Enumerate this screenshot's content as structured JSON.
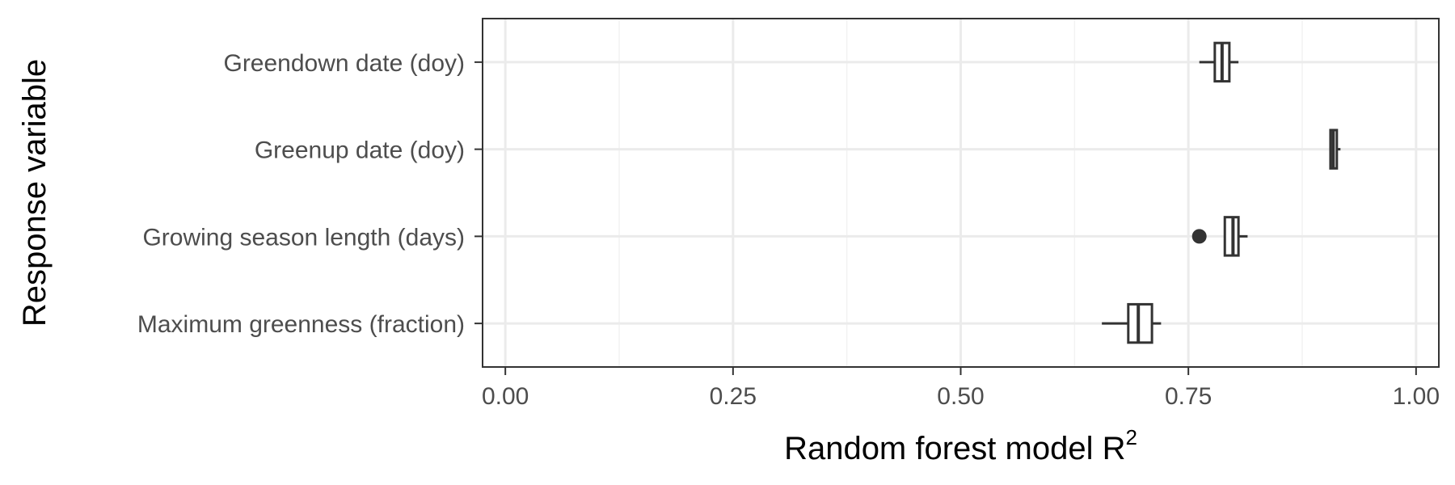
{
  "chart_data": {
    "type": "boxplot",
    "orientation": "horizontal",
    "title": "",
    "xlabel": "Random forest model R",
    "xlabel_superscript": "2",
    "ylabel": "Response variable",
    "xlim": [
      -0.025,
      1.025
    ],
    "x_ticks": [
      {
        "value": 0.0,
        "label": "0.00"
      },
      {
        "value": 0.25,
        "label": "0.25"
      },
      {
        "value": 0.5,
        "label": "0.50"
      },
      {
        "value": 0.75,
        "label": "0.75"
      },
      {
        "value": 1.0,
        "label": "1.00"
      }
    ],
    "x_minor_ticks": [
      0.125,
      0.375,
      0.625,
      0.875
    ],
    "grid": true,
    "legend": "none",
    "categories": [
      "Greendown date (doy)",
      "Greenup date (doy)",
      "Growing season length (days)",
      "Maximum greenness (fraction)"
    ],
    "boxes": [
      {
        "category": "Greendown date (doy)",
        "whisker_low": 0.762,
        "q1": 0.779,
        "median": 0.787,
        "q3": 0.795,
        "whisker_high": 0.805,
        "outliers": []
      },
      {
        "category": "Greenup date (doy)",
        "whisker_low": 0.905,
        "q1": 0.906,
        "median": 0.909,
        "q3": 0.913,
        "whisker_high": 0.917,
        "outliers": []
      },
      {
        "category": "Growing season length (days)",
        "whisker_low": 0.79,
        "q1": 0.79,
        "median": 0.799,
        "q3": 0.805,
        "whisker_high": 0.815,
        "outliers": [
          0.762
        ]
      },
      {
        "category": "Maximum greenness (fraction)",
        "whisker_low": 0.655,
        "q1": 0.684,
        "median": 0.695,
        "q3": 0.71,
        "whisker_high": 0.72,
        "outliers": []
      }
    ],
    "colors": {
      "box_stroke": "#333333",
      "box_fill": "#ffffff",
      "grid_major": "#ebebeb",
      "grid_minor": "#f2f2f2",
      "panel_border": "#333333"
    }
  }
}
